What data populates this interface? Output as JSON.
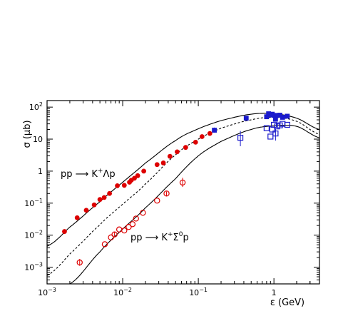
{
  "chart_data": {
    "type": "scatter",
    "xscale": "log",
    "yscale": "log",
    "xlim": [
      0.001,
      4
    ],
    "ylim": [
      0.0003,
      160
    ],
    "xlabel": "ε (GeV)",
    "ylabel": "σ (μb)",
    "xticks": [
      {
        "value": 0.001,
        "base": "10",
        "exp": "−3"
      },
      {
        "value": 0.01,
        "base": "10",
        "exp": "−2"
      },
      {
        "value": 0.1,
        "base": "10",
        "exp": "−1"
      },
      {
        "value": 1,
        "base": "1",
        "exp": ""
      }
    ],
    "yticks": [
      {
        "value": 0.001,
        "base": "10",
        "exp": "−3"
      },
      {
        "value": 0.01,
        "base": "10",
        "exp": "−2"
      },
      {
        "value": 0.1,
        "base": "10",
        "exp": "−1"
      },
      {
        "value": 1,
        "base": "1",
        "exp": ""
      },
      {
        "value": 10,
        "base": "10",
        "exp": ""
      },
      {
        "value": 100,
        "base": "10",
        "exp": "2"
      }
    ],
    "annotations": [
      {
        "id": "lambda",
        "text_pre": "pp ",
        "arrow": "⟶",
        "text_post_1": " K",
        "sup_1": "+",
        "text_post_2": "Λp",
        "sup_2": "",
        "text_post_3": "",
        "x": 0.0012,
        "y": 1.05
      },
      {
        "id": "sigma",
        "text_pre": "pp ",
        "arrow": "⟶",
        "text_post_1": " K",
        "sup_1": "+",
        "text_post_2": "Σ",
        "sup_2": "0",
        "text_post_3": "p",
        "x": 0.065,
        "y": 0.0092
      }
    ],
    "series": [
      {
        "id": "lambda-low",
        "marker": "filled-circle",
        "color": "#dd0000",
        "x": [
          0.0017,
          0.0025,
          0.0033,
          0.0042,
          0.005,
          0.0057,
          0.0067,
          0.0085,
          0.0105,
          0.0123,
          0.013,
          0.0143,
          0.0158,
          0.019,
          0.0285,
          0.0345,
          0.0422,
          0.0525,
          0.068,
          0.092,
          0.112,
          0.142
        ],
        "y": [
          0.013,
          0.035,
          0.06,
          0.088,
          0.13,
          0.15,
          0.2,
          0.35,
          0.36,
          0.45,
          0.52,
          0.6,
          0.72,
          1.0,
          1.6,
          1.8,
          2.9,
          4.0,
          5.5,
          8.0,
          12.0,
          15.0
        ]
      },
      {
        "id": "lambda-high",
        "marker": "filled-square",
        "color": "#1a1acc",
        "x": [
          0.163,
          0.43,
          0.8,
          0.85,
          0.9,
          0.95,
          1.0,
          1.05,
          1.1,
          1.2,
          1.3,
          1.5
        ],
        "y": [
          19.0,
          45.0,
          50.0,
          62.0,
          57.0,
          60.0,
          55.0,
          42.0,
          55.0,
          56.0,
          48.0,
          52.0
        ]
      },
      {
        "id": "sigma-low",
        "marker": "open-circle",
        "color": "#dd0000",
        "x": [
          0.0027,
          0.0058,
          0.007,
          0.0078,
          0.009,
          0.0105,
          0.012,
          0.0135,
          0.015,
          0.0185,
          0.0285,
          0.038,
          0.062
        ],
        "y": [
          0.0014,
          0.0052,
          0.0085,
          0.0105,
          0.015,
          0.014,
          0.018,
          0.022,
          0.033,
          0.05,
          0.12,
          0.2,
          0.44
        ]
      },
      {
        "id": "sigma-high",
        "marker": "open-square",
        "color": "#1a1acc",
        "x": [
          0.36,
          0.8,
          0.9,
          0.95,
          1.0,
          1.05,
          1.1,
          1.2,
          1.3,
          1.5
        ],
        "y": [
          11.0,
          22.0,
          12.0,
          20.0,
          28.0,
          15.0,
          25.0,
          27.0,
          30.0,
          28.0
        ]
      }
    ],
    "curves": [
      {
        "id": "lambda-fit",
        "style": "solid",
        "x": [
          0.001,
          0.002,
          0.005,
          0.01,
          0.02,
          0.05,
          0.1,
          0.2,
          0.5,
          1,
          2,
          4
        ],
        "y": [
          0.0045,
          0.018,
          0.11,
          0.45,
          1.8,
          9,
          21,
          38,
          60,
          62,
          45,
          20
        ]
      },
      {
        "id": "dotted-fit",
        "style": "dashed",
        "x": [
          0.001,
          0.002,
          0.005,
          0.01,
          0.02,
          0.05,
          0.1,
          0.2,
          0.5,
          1,
          2,
          4
        ],
        "y": [
          0.00055,
          0.0026,
          0.021,
          0.093,
          0.4,
          3.2,
          10,
          22,
          40,
          48,
          36,
          14
        ]
      },
      {
        "id": "sigma-fit",
        "style": "solid",
        "x": [
          0.002,
          0.005,
          0.01,
          0.02,
          0.05,
          0.1,
          0.2,
          0.5,
          1,
          2,
          4
        ],
        "y": [
          0.0003,
          0.003,
          0.0155,
          0.072,
          0.58,
          3.0,
          8.5,
          20,
          26,
          25,
          11
        ]
      }
    ]
  }
}
